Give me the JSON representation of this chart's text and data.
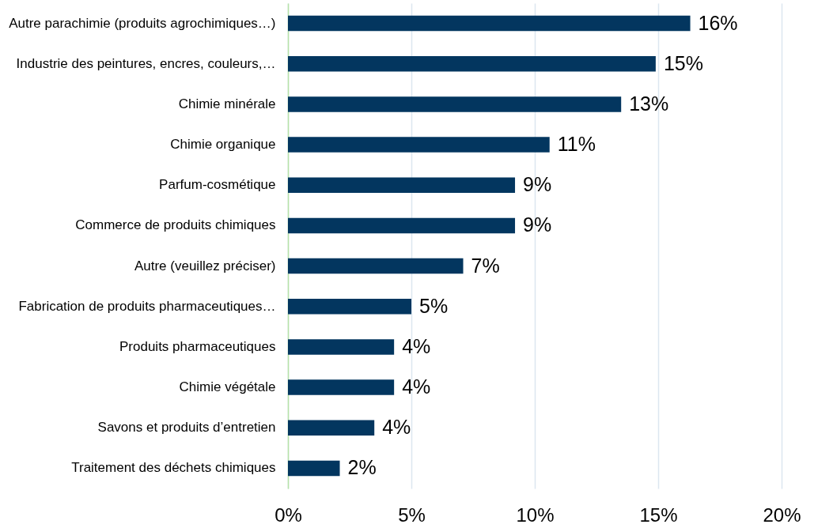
{
  "chart_data": {
    "type": "bar",
    "orientation": "horizontal",
    "categories": [
      "Autre parachimie (produits agrochimiques…)",
      "Industrie des peintures, encres, couleurs,…",
      "Chimie minérale",
      "Chimie organique",
      "Parfum-cosmétique",
      "Commerce de produits chimiques",
      "Autre (veuillez préciser)",
      "Fabrication de produits pharmaceutiques…",
      "Produits pharmaceutiques",
      "Chimie végétale",
      "Savons et produits d’entretien",
      "Traitement des déchets chimiques"
    ],
    "values": [
      16.3,
      14.9,
      13.5,
      10.6,
      9.2,
      9.2,
      7.1,
      5.0,
      4.3,
      4.3,
      3.5,
      2.1
    ],
    "value_labels": [
      "16%",
      "15%",
      "13%",
      "11%",
      "9%",
      "9%",
      "7%",
      "5%",
      "4%",
      "4%",
      "4%",
      "2%"
    ],
    "color": "#03365f",
    "xlim": [
      0,
      20
    ],
    "xticks": [
      {
        "value": 0,
        "label": "0%"
      },
      {
        "value": 5,
        "label": "5%"
      },
      {
        "value": 10,
        "label": "10%"
      },
      {
        "value": 15,
        "label": "15%"
      },
      {
        "value": 20,
        "label": "20%"
      }
    ],
    "grid": "x"
  }
}
